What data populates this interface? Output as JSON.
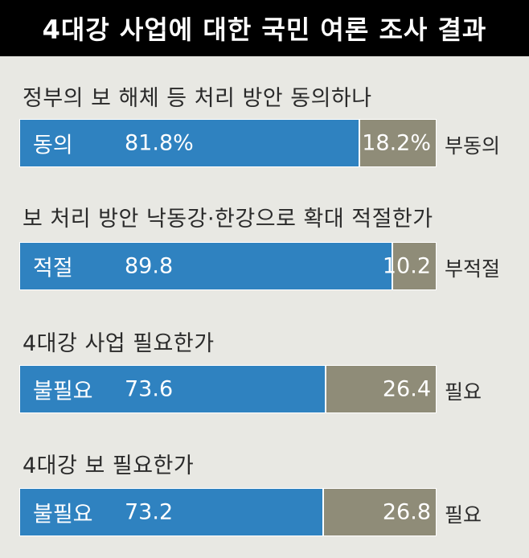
{
  "title": "4대강 사업에 대한 국민 여론 조사 결과",
  "chart_data": [
    {
      "type": "bar",
      "title": "정부의 보 해체 등 처리 방안 동의하나",
      "categories": [
        "동의",
        "부동의"
      ],
      "values": [
        81.8,
        18.2
      ],
      "value_labels": [
        "81.8%",
        "18.2%"
      ],
      "colors": [
        "#2f82c0",
        "#8f8c78"
      ]
    },
    {
      "type": "bar",
      "title": "보 처리 방안 낙동강·한강으로 확대 적절한가",
      "categories": [
        "적절",
        "부적절"
      ],
      "values": [
        89.8,
        10.2
      ],
      "value_labels": [
        "89.8",
        "10.2"
      ],
      "colors": [
        "#2f82c0",
        "#8f8c78"
      ]
    },
    {
      "type": "bar",
      "title": "4대강 사업 필요한가",
      "categories": [
        "불필요",
        "필요"
      ],
      "values": [
        73.6,
        26.4
      ],
      "value_labels": [
        "73.6",
        "26.4"
      ],
      "colors": [
        "#2f82c0",
        "#8f8c78"
      ]
    },
    {
      "type": "bar",
      "title": "4대강 보 필요한가",
      "categories": [
        "불필요",
        "필요"
      ],
      "values": [
        73.2,
        26.8
      ],
      "value_labels": [
        "73.2",
        "26.8"
      ],
      "colors": [
        "#2f82c0",
        "#8f8c78"
      ]
    }
  ]
}
